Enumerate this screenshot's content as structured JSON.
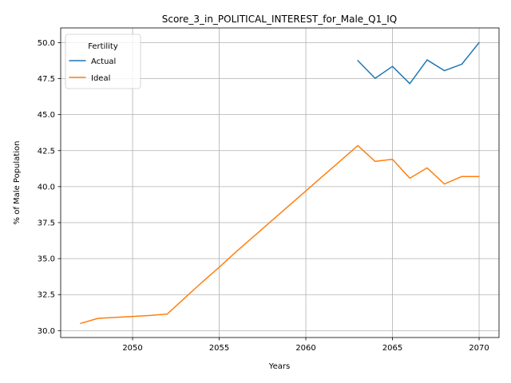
{
  "chart_data": {
    "type": "line",
    "title": "Score_3_in_POLITICAL_INTEREST_for_Male_Q1_IQ",
    "xlabel": "Years",
    "ylabel": "% of Male Population",
    "xlim": [
      2045.85,
      2071.15
    ],
    "ylim": [
      29.52,
      51.02
    ],
    "xticks": [
      2050,
      2055,
      2060,
      2065,
      2070
    ],
    "yticks": [
      30.0,
      32.5,
      35.0,
      37.5,
      40.0,
      42.5,
      45.0,
      47.5,
      50.0
    ],
    "ytick_labels": [
      "30.0",
      "32.5",
      "35.0",
      "37.5",
      "40.0",
      "42.5",
      "45.0",
      "47.5",
      "50.0"
    ],
    "grid": true,
    "legend": {
      "title": "Fertility",
      "position": "upper left"
    },
    "series": [
      {
        "name": "Actual",
        "color": "#1f77b4",
        "x": [
          2063,
          2064,
          2065,
          2066,
          2067,
          2068,
          2069,
          2070
        ],
        "y": [
          48.75,
          47.52,
          48.35,
          47.15,
          48.8,
          48.05,
          48.5,
          50.0
        ]
      },
      {
        "name": "Ideal",
        "color": "#ff7f0e",
        "x": [
          2047,
          2048,
          2049,
          2050,
          2051,
          2052,
          2053,
          2054,
          2055,
          2056,
          2057,
          2058,
          2059,
          2060,
          2061,
          2062,
          2063,
          2064,
          2065,
          2066,
          2067,
          2068,
          2069,
          2070
        ],
        "y": [
          30.5,
          30.85,
          30.92,
          30.98,
          31.05,
          31.15,
          32.25,
          33.35,
          34.4,
          35.5,
          36.55,
          37.6,
          38.65,
          39.7,
          40.75,
          41.8,
          42.85,
          41.75,
          41.9,
          40.58,
          41.3,
          40.18,
          40.7,
          40.7
        ]
      }
    ]
  }
}
